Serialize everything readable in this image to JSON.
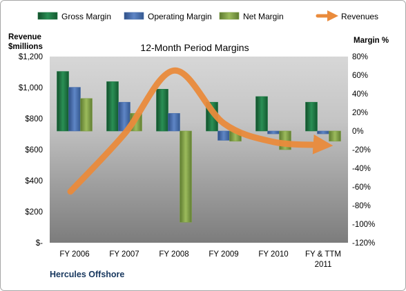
{
  "chart_data": {
    "type": "bar",
    "title": "12-Month Period Margins",
    "company": "Hercules Offshore",
    "left_axis": {
      "label_line1": "Revenue",
      "label_line2": "$millions",
      "range": [
        0,
        1200
      ],
      "ticks": [
        "$-",
        "$200",
        "$400",
        "$600",
        "$800",
        "$1,000",
        "$1,200"
      ],
      "tick_values": [
        0,
        200,
        400,
        600,
        800,
        1000,
        1200
      ]
    },
    "right_axis": {
      "label": "Margin %",
      "range": [
        -120,
        80
      ],
      "ticks": [
        "80%",
        "60%",
        "40%",
        "20%",
        "0%",
        "-20%",
        "-40%",
        "-60%",
        "-80%",
        "-100%",
        "-120%"
      ],
      "tick_values": [
        80,
        60,
        40,
        20,
        0,
        -20,
        -40,
        -60,
        -80,
        -100,
        -120
      ]
    },
    "categories": [
      {
        "line1": "FY 2006",
        "line2": ""
      },
      {
        "line1": "FY 2007",
        "line2": ""
      },
      {
        "line1": "FY 2008",
        "line2": ""
      },
      {
        "line1": "FY 2009",
        "line2": ""
      },
      {
        "line1": "FY 2010",
        "line2": ""
      },
      {
        "line1": "FY & TTM",
        "line2": "2011"
      }
    ],
    "series": [
      {
        "name": "Gross Margin",
        "axis": "right",
        "kind": "bar",
        "color": "#1e7a45",
        "values": [
          64,
          53,
          45,
          31,
          37,
          31
        ]
      },
      {
        "name": "Operating Margin",
        "axis": "right",
        "kind": "bar",
        "color": "#4a70ad",
        "values": [
          47,
          31,
          19,
          -10,
          -3,
          -3
        ]
      },
      {
        "name": "Net Margin",
        "axis": "right",
        "kind": "bar",
        "color": "#7f9f45",
        "values": [
          35,
          19,
          -98,
          -11,
          -20,
          -11
        ]
      },
      {
        "name": "Revenues",
        "axis": "left",
        "kind": "line",
        "color": "#ea8b3c",
        "values": [
          330,
          700,
          1110,
          770,
          650,
          630
        ]
      }
    ],
    "grid": false,
    "legend": "top"
  }
}
